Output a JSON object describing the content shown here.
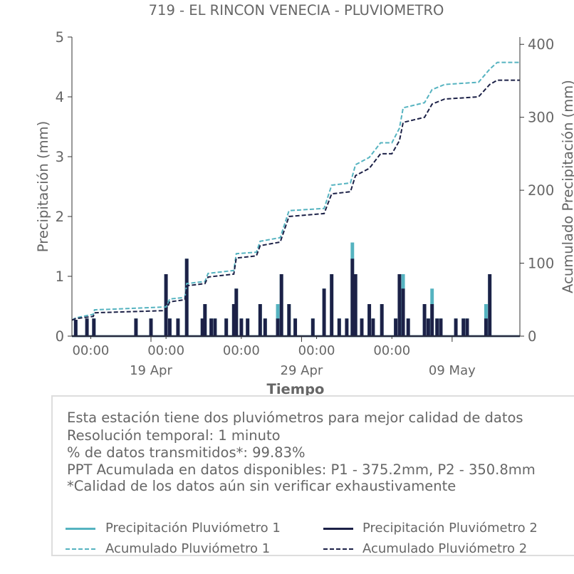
{
  "title": "719 - EL RINCON VENECIA - PLUVIOMETRO",
  "colors": {
    "p1": "#55b3c0",
    "p2": "#1c2147",
    "text": "#666666",
    "axis": "#333333"
  },
  "chart_data": {
    "type": "line",
    "title": "719 - EL RINCON VENECIA - PLUVIOMETRO",
    "xlabel": "Tiempo",
    "ylabel": "Precipitación (mm)",
    "ylabel_right": "Acumulado Precipitación (mm)",
    "ylim": [
      0,
      5
    ],
    "ylim_right": [
      0,
      410
    ],
    "xlim": [
      "2025-04-13 18:00",
      "2025-05-13 12:00"
    ],
    "yticks": [
      "0",
      "1",
      "2",
      "3",
      "4",
      "5"
    ],
    "yticks_right": [
      "0",
      "100",
      "200",
      "300",
      "400"
    ],
    "xticks_minor": [
      "00:00",
      "00:00",
      "00:00",
      "00:00",
      "00:00"
    ],
    "xticks_major": [
      "19 Apr",
      "29 Apr",
      "09 May"
    ],
    "grid": false,
    "series": [
      {
        "name": "Precipitación Pluviómetro 1",
        "axis": "left",
        "style": "solid",
        "events": [
          [
            "2025-04-14 00:00",
            0.26
          ],
          [
            "2025-04-14 18:00",
            0.28
          ],
          [
            "2025-04-15 05:00",
            0.28
          ],
          [
            "2025-04-18 00:00",
            0.28
          ],
          [
            "2025-04-19 00:00",
            0.28
          ],
          [
            "2025-04-20 00:00",
            1.02
          ],
          [
            "2025-04-20 06:00",
            0.28
          ],
          [
            "2025-04-20 19:00",
            0.28
          ],
          [
            "2025-04-21 09:00",
            1.28
          ],
          [
            "2025-04-22 10:00",
            0.28
          ],
          [
            "2025-04-22 14:00",
            0.52
          ],
          [
            "2025-04-23 00:00",
            0.28
          ],
          [
            "2025-04-23 06:00",
            0.28
          ],
          [
            "2025-04-24 00:00",
            0.28
          ],
          [
            "2025-04-24 12:00",
            0.52
          ],
          [
            "2025-04-24 16:00",
            0.78
          ],
          [
            "2025-04-25 00:00",
            0.28
          ],
          [
            "2025-04-25 10:00",
            0.28
          ],
          [
            "2025-04-26 06:00",
            0.52
          ],
          [
            "2025-04-26 14:00",
            0.28
          ],
          [
            "2025-04-27 10:00",
            0.52
          ],
          [
            "2025-04-27 16:00",
            1.02
          ],
          [
            "2025-04-28 04:00",
            0.52
          ],
          [
            "2025-04-28 14:00",
            0.28
          ],
          [
            "2025-04-29 18:00",
            0.28
          ],
          [
            "2025-04-30 12:00",
            0.78
          ],
          [
            "2025-05-01 00:00",
            1.02
          ],
          [
            "2025-05-01 12:00",
            0.28
          ],
          [
            "2025-05-02 00:00",
            0.28
          ],
          [
            "2025-05-02 09:00",
            1.55
          ],
          [
            "2025-05-02 14:00",
            1.02
          ],
          [
            "2025-05-03 00:00",
            0.28
          ],
          [
            "2025-05-03 12:00",
            0.52
          ],
          [
            "2025-05-03 18:00",
            0.28
          ],
          [
            "2025-05-04 08:00",
            0.52
          ],
          [
            "2025-05-05 06:00",
            0.28
          ],
          [
            "2025-05-05 12:00",
            1.02
          ],
          [
            "2025-05-05 18:00",
            1.02
          ],
          [
            "2025-05-06 02:00",
            0.28
          ],
          [
            "2025-05-07 04:00",
            0.52
          ],
          [
            "2025-05-07 10:00",
            0.28
          ],
          [
            "2025-05-07 16:00",
            0.78
          ],
          [
            "2025-05-08 00:00",
            0.28
          ],
          [
            "2025-05-08 06:00",
            0.28
          ],
          [
            "2025-05-09 06:00",
            0.28
          ],
          [
            "2025-05-09 18:00",
            0.28
          ],
          [
            "2025-05-10 00:00",
            0.28
          ],
          [
            "2025-05-11 06:00",
            0.52
          ],
          [
            "2025-05-11 12:00",
            1.02
          ]
        ]
      },
      {
        "name": "Precipitación Pluviómetro 2",
        "axis": "left",
        "style": "solid",
        "events": [
          [
            "2025-04-14 00:00",
            0.26
          ],
          [
            "2025-04-14 18:00",
            0.28
          ],
          [
            "2025-04-15 05:00",
            0.28
          ],
          [
            "2025-04-18 00:00",
            0.28
          ],
          [
            "2025-04-19 00:00",
            0.28
          ],
          [
            "2025-04-20 00:00",
            1.02
          ],
          [
            "2025-04-20 06:00",
            0.28
          ],
          [
            "2025-04-20 19:00",
            0.28
          ],
          [
            "2025-04-21 09:00",
            1.28
          ],
          [
            "2025-04-22 10:00",
            0.28
          ],
          [
            "2025-04-22 14:00",
            0.52
          ],
          [
            "2025-04-23 00:00",
            0.28
          ],
          [
            "2025-04-23 06:00",
            0.28
          ],
          [
            "2025-04-24 00:00",
            0.28
          ],
          [
            "2025-04-24 12:00",
            0.52
          ],
          [
            "2025-04-24 16:00",
            0.78
          ],
          [
            "2025-04-25 00:00",
            0.28
          ],
          [
            "2025-04-25 10:00",
            0.28
          ],
          [
            "2025-04-26 06:00",
            0.52
          ],
          [
            "2025-04-26 14:00",
            0.28
          ],
          [
            "2025-04-27 10:00",
            0.28
          ],
          [
            "2025-04-27 16:00",
            1.02
          ],
          [
            "2025-04-28 04:00",
            0.52
          ],
          [
            "2025-04-28 14:00",
            0.28
          ],
          [
            "2025-04-29 18:00",
            0.28
          ],
          [
            "2025-04-30 12:00",
            0.78
          ],
          [
            "2025-05-01 00:00",
            1.02
          ],
          [
            "2025-05-01 12:00",
            0.28
          ],
          [
            "2025-05-02 00:00",
            0.28
          ],
          [
            "2025-05-02 09:00",
            1.28
          ],
          [
            "2025-05-02 14:00",
            1.02
          ],
          [
            "2025-05-03 00:00",
            0.28
          ],
          [
            "2025-05-03 12:00",
            0.52
          ],
          [
            "2025-05-03 18:00",
            0.28
          ],
          [
            "2025-05-04 08:00",
            0.52
          ],
          [
            "2025-05-05 06:00",
            0.28
          ],
          [
            "2025-05-05 12:00",
            1.02
          ],
          [
            "2025-05-05 18:00",
            0.78
          ],
          [
            "2025-05-06 02:00",
            0.28
          ],
          [
            "2025-05-07 04:00",
            0.52
          ],
          [
            "2025-05-07 10:00",
            0.28
          ],
          [
            "2025-05-07 16:00",
            0.52
          ],
          [
            "2025-05-08 00:00",
            0.28
          ],
          [
            "2025-05-08 06:00",
            0.28
          ],
          [
            "2025-05-09 06:00",
            0.28
          ],
          [
            "2025-05-09 18:00",
            0.28
          ],
          [
            "2025-05-10 00:00",
            0.28
          ],
          [
            "2025-05-11 06:00",
            0.28
          ],
          [
            "2025-05-11 12:00",
            1.02
          ]
        ]
      },
      {
        "name": "Acumulado Pluviómetro 1",
        "axis": "right",
        "style": "dashed",
        "points": [
          [
            "2025-04-13 18:00",
            22
          ],
          [
            "2025-04-14 00:00",
            25
          ],
          [
            "2025-04-15 04:00",
            30
          ],
          [
            "2025-04-15 06:00",
            36
          ],
          [
            "2025-04-20 00:00",
            40
          ],
          [
            "2025-04-20 06:00",
            51
          ],
          [
            "2025-04-21 06:00",
            53
          ],
          [
            "2025-04-21 09:00",
            72
          ],
          [
            "2025-04-22 14:00",
            75
          ],
          [
            "2025-04-22 19:00",
            86
          ],
          [
            "2025-04-24 12:00",
            90
          ],
          [
            "2025-04-24 16:00",
            113
          ],
          [
            "2025-04-26 00:00",
            115
          ],
          [
            "2025-04-26 06:00",
            130
          ],
          [
            "2025-04-27 14:00",
            135
          ],
          [
            "2025-04-28 04:00",
            172
          ],
          [
            "2025-04-30 12:00",
            175
          ],
          [
            "2025-05-01 00:00",
            207
          ],
          [
            "2025-05-02 06:00",
            210
          ],
          [
            "2025-05-02 14:00",
            235
          ],
          [
            "2025-05-03 12:00",
            245
          ],
          [
            "2025-05-04 06:00",
            265
          ],
          [
            "2025-05-05 00:00",
            265
          ],
          [
            "2025-05-05 12:00",
            285
          ],
          [
            "2025-05-05 18:00",
            313
          ],
          [
            "2025-05-07 04:00",
            320
          ],
          [
            "2025-05-07 16:00",
            338
          ],
          [
            "2025-05-08 12:00",
            345
          ],
          [
            "2025-05-10 18:00",
            348
          ],
          [
            "2025-05-11 12:00",
            366
          ],
          [
            "2025-05-12 00:00",
            375.2
          ],
          [
            "2025-05-13 12:00",
            375.2
          ]
        ]
      },
      {
        "name": "Acumulado Pluviómetro 2",
        "axis": "right",
        "style": "dashed",
        "points": [
          [
            "2025-04-13 18:00",
            22
          ],
          [
            "2025-04-14 00:00",
            24
          ],
          [
            "2025-04-15 04:00",
            27
          ],
          [
            "2025-04-15 06:00",
            32
          ],
          [
            "2025-04-20 00:00",
            35
          ],
          [
            "2025-04-20 06:00",
            47
          ],
          [
            "2025-04-21 06:00",
            50
          ],
          [
            "2025-04-21 09:00",
            69
          ],
          [
            "2025-04-22 14:00",
            72
          ],
          [
            "2025-04-22 19:00",
            81
          ],
          [
            "2025-04-24 12:00",
            85
          ],
          [
            "2025-04-24 16:00",
            107
          ],
          [
            "2025-04-26 00:00",
            110
          ],
          [
            "2025-04-26 06:00",
            124
          ],
          [
            "2025-04-27 14:00",
            129
          ],
          [
            "2025-04-28 04:00",
            164
          ],
          [
            "2025-04-30 12:00",
            168
          ],
          [
            "2025-05-01 00:00",
            195
          ],
          [
            "2025-05-02 06:00",
            198
          ],
          [
            "2025-05-02 14:00",
            220
          ],
          [
            "2025-05-03 12:00",
            230
          ],
          [
            "2025-05-04 06:00",
            250
          ],
          [
            "2025-05-05 00:00",
            250
          ],
          [
            "2025-05-05 12:00",
            268
          ],
          [
            "2025-05-05 18:00",
            293
          ],
          [
            "2025-05-07 04:00",
            300
          ],
          [
            "2025-05-07 16:00",
            318
          ],
          [
            "2025-05-08 12:00",
            325
          ],
          [
            "2025-05-10 18:00",
            328
          ],
          [
            "2025-05-11 12:00",
            345
          ],
          [
            "2025-05-12 00:00",
            350.8
          ],
          [
            "2025-05-13 12:00",
            350.8
          ]
        ]
      }
    ]
  },
  "info": {
    "lines": [
      "Esta estación tiene dos pluviómetros para mejor calidad de datos",
      "Resolución temporal: 1 minuto",
      "% de datos transmitidos*: 99.83%",
      "PPT Acumulada en datos disponibles: P1 - 375.2mm, P2 - 350.8mm",
      "*Calidad de los datos aún sin verificar exhaustivamente"
    ]
  },
  "legend": {
    "items": [
      {
        "label": "Precipitación Pluviómetro 1",
        "color": "#55b3c0",
        "style": "solid"
      },
      {
        "label": "Precipitación Pluviómetro 2",
        "color": "#1c2147",
        "style": "solid"
      },
      {
        "label": "Acumulado Pluviómetro 1",
        "color": "#55b3c0",
        "style": "dashed"
      },
      {
        "label": "Acumulado Pluviómetro 2",
        "color": "#1c2147",
        "style": "dashed"
      }
    ]
  }
}
